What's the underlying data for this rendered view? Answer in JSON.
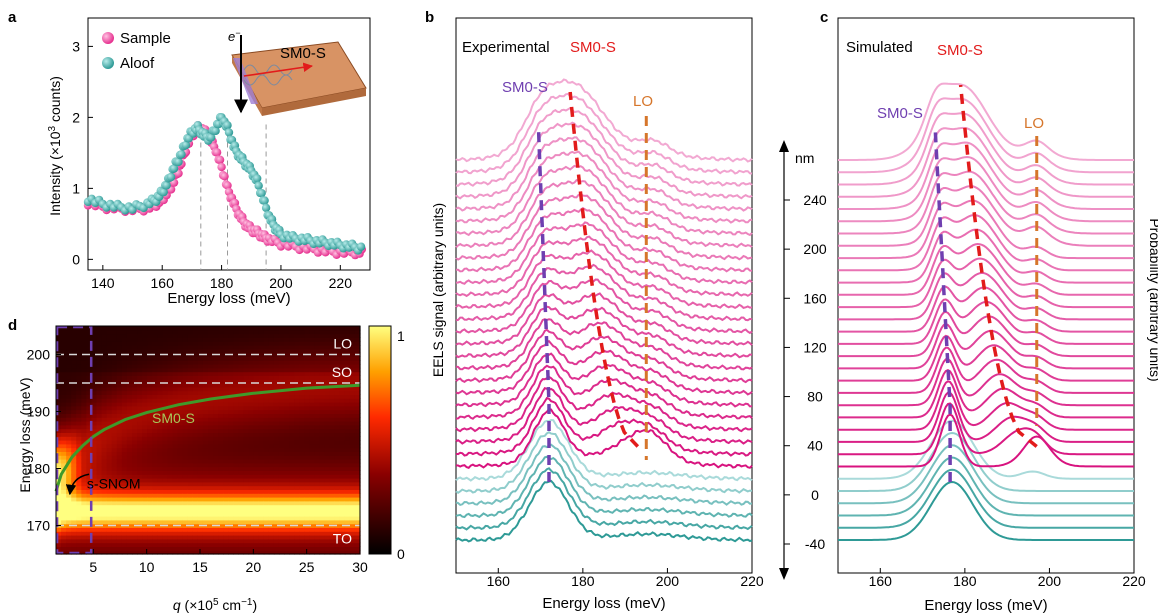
{
  "panel_labels": {
    "a": "a",
    "b": "b",
    "c": "c",
    "d": "d"
  },
  "colors": {
    "sample": "#e6308f",
    "aloof": "#2e9a96",
    "sm0s_purple": "#6f3fb0",
    "sm0s_red": "#e21b1b",
    "lo_orange": "#d6762b",
    "green_curve": "#3f9a2a",
    "dashed_white": "#d9d9d9"
  },
  "chart_data": [
    {
      "panel": "a",
      "type": "scatter",
      "xlabel": "Energy loss (meV)",
      "ylabel_main": "Intensity (×10",
      "ylabel_sup": "3",
      "ylabel_end": " counts)",
      "xlim": [
        135,
        230
      ],
      "ylim": [
        -0.15,
        3.4
      ],
      "xticks": [
        140,
        160,
        180,
        200,
        220
      ],
      "yticks": [
        0,
        1,
        2,
        3
      ],
      "legend": [
        "Sample",
        "Aloof"
      ],
      "inset_label": "SM0-S",
      "inset_electron": "e",
      "inset_electron_sup": "−",
      "guide_lines_x": [
        173,
        182,
        195
      ],
      "series": [
        {
          "name": "Sample",
          "x": [
            135,
            140,
            145,
            150,
            155,
            158,
            160,
            162,
            164,
            166,
            168,
            170,
            172,
            174,
            176,
            178,
            180,
            182,
            184,
            186,
            188,
            190,
            192,
            194,
            196,
            198,
            200,
            204,
            208,
            212,
            216,
            220,
            224,
            228
          ],
          "y": [
            0.85,
            0.78,
            0.74,
            0.72,
            0.78,
            0.85,
            0.95,
            1.1,
            1.3,
            1.45,
            1.65,
            1.8,
            1.85,
            1.75,
            1.7,
            1.85,
            2.0,
            1.85,
            1.6,
            1.45,
            1.35,
            1.25,
            1.1,
            0.85,
            0.6,
            0.45,
            0.35,
            0.3,
            0.28,
            0.25,
            0.23,
            0.2,
            0.18,
            0.15
          ]
        },
        {
          "name": "Aloof",
          "x": [
            135,
            140,
            145,
            150,
            155,
            158,
            160,
            162,
            164,
            166,
            168,
            170,
            172,
            174,
            176,
            178,
            180,
            182,
            184,
            186,
            188,
            190,
            192,
            194,
            196,
            200,
            205,
            210,
            215,
            220,
            225,
            228
          ],
          "y": [
            0.8,
            0.74,
            0.72,
            0.7,
            0.72,
            0.78,
            0.85,
            0.95,
            1.1,
            1.3,
            1.55,
            1.75,
            1.85,
            1.82,
            1.7,
            1.55,
            1.3,
            1.0,
            0.8,
            0.62,
            0.5,
            0.42,
            0.38,
            0.32,
            0.28,
            0.22,
            0.18,
            0.15,
            0.12,
            0.1,
            0.1,
            0.1
          ]
        }
      ]
    },
    {
      "panel": "b",
      "type": "line",
      "title": "Experimental",
      "xlabel": "Energy loss (meV)",
      "ylabel": "EELS signal (arbitrary units)",
      "xlim": [
        150,
        220
      ],
      "xticks": [
        160,
        180,
        200,
        220
      ],
      "annotations": [
        "SM0-S",
        "SM0-S",
        "LO"
      ],
      "n_curves": 32,
      "n_aloof_curves": 6
    },
    {
      "panel": "c",
      "type": "line",
      "title": "Simulated",
      "xlabel": "Energy loss (meV)",
      "ylabel": "Probability (arbitrary units)",
      "xlim": [
        150,
        220
      ],
      "xticks": [
        160,
        180,
        200,
        220
      ],
      "annotations": [
        "SM0-S",
        "SM0-S",
        "LO"
      ],
      "n_curves": 32,
      "n_aloof_curves": 6,
      "position_axis": {
        "unit": "nm",
        "ticks": [
          240,
          200,
          160,
          120,
          80,
          40,
          0,
          -40
        ]
      }
    },
    {
      "panel": "d",
      "type": "heatmap",
      "xlabel_q": "q",
      "xlabel_rest": " (×10",
      "xlabel_sup1": "5",
      "xlabel_mid": " cm",
      "xlabel_sup2": "−1",
      "xlabel_end": ")",
      "ylabel": "Energy loss (meV)",
      "xlim": [
        1.5,
        30
      ],
      "ylim": [
        165,
        205
      ],
      "xticks": [
        5,
        10,
        15,
        20,
        25,
        30
      ],
      "yticks": [
        170,
        180,
        190,
        200
      ],
      "colorbar_ticks": [
        0,
        1
      ],
      "lines": [
        {
          "label": "LO",
          "y": 200
        },
        {
          "label": "SO",
          "y": 195
        },
        {
          "label": "TO",
          "y": 170
        }
      ],
      "curve_label": "SM0-S",
      "snom_label": "s-SNOM",
      "curve": {
        "x": [
          1.5,
          2,
          3,
          4,
          5,
          6,
          8,
          10,
          13,
          16,
          20,
          25,
          30
        ],
        "y": [
          176,
          179,
          182,
          184,
          185.6,
          186.8,
          188.6,
          189.8,
          191.2,
          192.2,
          193.2,
          194.1,
          194.6
        ]
      }
    }
  ]
}
